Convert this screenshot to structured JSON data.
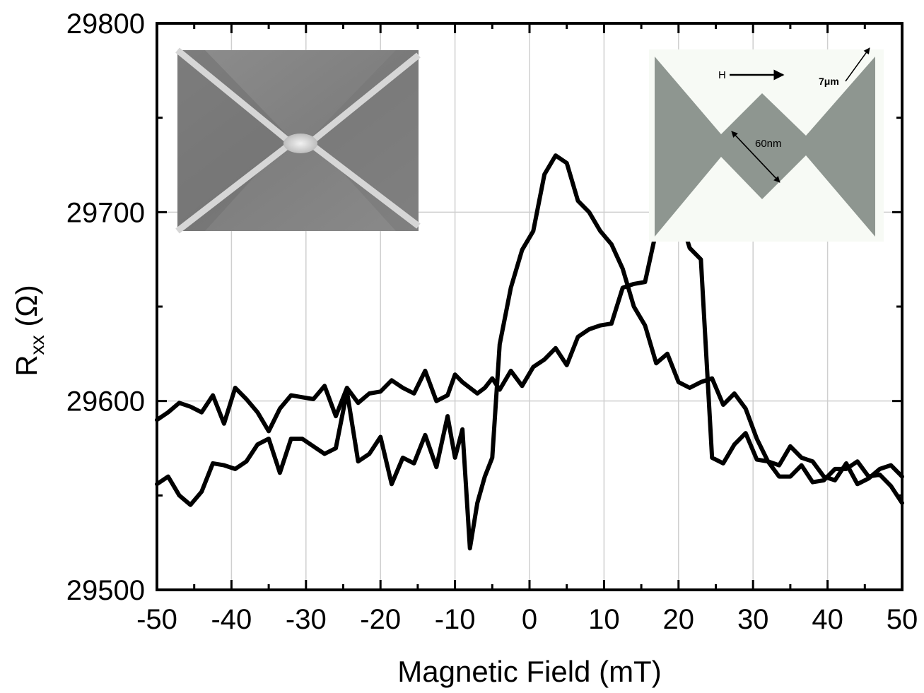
{
  "chart_data": {
    "type": "line",
    "title": "",
    "xlabel": "Magnetic Field (mT)",
    "ylabel_main": "R",
    "ylabel_sub": "xx",
    "ylabel_unit": " (Ω)",
    "xlim": [
      -50,
      50
    ],
    "ylim": [
      29500,
      29800
    ],
    "x_ticks": [
      -50,
      -40,
      -30,
      -20,
      -10,
      0,
      10,
      20,
      30,
      40,
      50
    ],
    "y_ticks": [
      29500,
      29600,
      29700,
      29800
    ],
    "grid": true,
    "legend": "none",
    "line_color": "#000000",
    "series": [
      {
        "x": [
          -50,
          -48.5,
          -47,
          -45.5,
          -44,
          -42.5,
          -41,
          -39.5,
          -38,
          -36.5,
          -35,
          -33.5,
          -32,
          -30.5,
          -29,
          -27.5,
          -26,
          -24.5,
          -23,
          -21.5,
          -20,
          -18.5,
          -17,
          -15.5,
          -14,
          -12.5,
          -11,
          -10,
          -9,
          -8,
          -7,
          -6,
          -5,
          -4,
          -2.5,
          -1,
          0.5,
          2,
          3.5,
          5,
          6.5,
          8,
          9.5,
          11,
          12.5,
          14,
          15.5,
          17,
          18.5,
          20,
          21.5,
          23,
          24.5,
          26,
          27.5,
          29,
          30.5,
          32,
          33.5,
          35,
          36.5,
          38,
          39.5,
          41,
          42.5,
          44,
          45.5,
          47,
          48.5,
          50
        ],
        "y": [
          29556,
          29560,
          29550,
          29545,
          29552,
          29567,
          29566,
          29564,
          29568,
          29577,
          29580,
          29562,
          29580,
          29580,
          29576,
          29572,
          29575,
          29605,
          29568,
          29572,
          29581,
          29556,
          29570,
          29567,
          29582,
          29565,
          29592,
          29570,
          29585,
          29522,
          29546,
          29560,
          29570,
          29630,
          29660,
          29680,
          29690,
          29720,
          29730,
          29726,
          29706,
          29700,
          29690,
          29683,
          29670,
          29650,
          29640,
          29620,
          29625,
          29610,
          29607,
          29610,
          29612,
          29598,
          29604,
          29596,
          29580,
          29568,
          29566,
          29576,
          29570,
          29568,
          29560,
          29558,
          29567,
          29556,
          29559,
          29564,
          29566,
          29560
        ]
      },
      {
        "x": [
          -50,
          -48.5,
          -47,
          -45.5,
          -44,
          -42.5,
          -41,
          -39.5,
          -38,
          -36.5,
          -35,
          -33.5,
          -32,
          -30.5,
          -29,
          -27.5,
          -26,
          -24.5,
          -23,
          -21.5,
          -20,
          -18.5,
          -17,
          -15.5,
          -14,
          -12.5,
          -11,
          -10,
          -9,
          -8,
          -7,
          -6,
          -5,
          -4,
          -2.5,
          -1,
          0.5,
          2,
          3.5,
          5,
          6.5,
          8,
          9.5,
          11,
          12.5,
          14,
          15.5,
          17,
          18.5,
          20,
          21.5,
          23,
          24.5,
          26,
          27.5,
          29,
          30.5,
          32,
          33.5,
          35,
          36.5,
          38,
          39.5,
          41,
          42.5,
          44,
          45.5,
          47,
          48.5,
          50
        ],
        "y": [
          29590,
          29594,
          29599,
          29597,
          29594,
          29603,
          29588,
          29607,
          29601,
          29594,
          29584,
          29596,
          29603,
          29602,
          29601,
          29608,
          29592,
          29607,
          29599,
          29604,
          29605,
          29611,
          29607,
          29604,
          29616,
          29600,
          29603,
          29614,
          29610,
          29607,
          29604,
          29607,
          29612,
          29606,
          29616,
          29608,
          29618,
          29622,
          29628,
          29619,
          29634,
          29638,
          29640,
          29641,
          29660,
          29662,
          29663,
          29690,
          29697,
          29700,
          29681,
          29675,
          29570,
          29567,
          29577,
          29583,
          29569,
          29568,
          29560,
          29560,
          29566,
          29557,
          29558,
          29564,
          29564,
          29568,
          29560,
          29561,
          29555,
          29546
        ]
      }
    ]
  },
  "insets": {
    "diagram_field_label": "H",
    "diagram_width_label": "60nm",
    "diagram_size_label": "7μm"
  }
}
